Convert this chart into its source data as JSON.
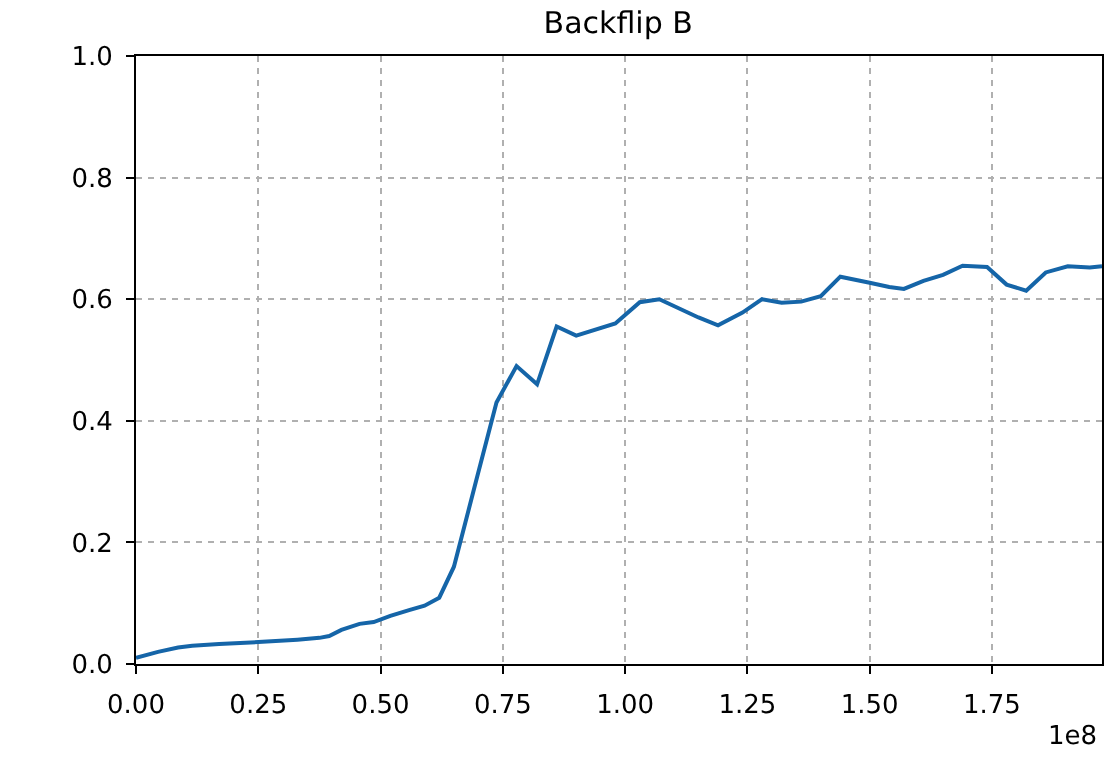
{
  "chart_data": {
    "type": "line",
    "title": "Backflip B",
    "annotations": [
      "1e8"
    ],
    "x": [
      0,
      0.045,
      0.086,
      0.115,
      0.17,
      0.25,
      0.33,
      0.375,
      0.395,
      0.42,
      0.457,
      0.486,
      0.52,
      0.56,
      0.59,
      0.62,
      0.65,
      0.695,
      0.737,
      0.778,
      0.82,
      0.86,
      0.9,
      0.98,
      1.03,
      1.07,
      1.15,
      1.19,
      1.24,
      1.28,
      1.32,
      1.36,
      1.4,
      1.44,
      1.5,
      1.54,
      1.57,
      1.61,
      1.65,
      1.69,
      1.74,
      1.78,
      1.82,
      1.86,
      1.905,
      1.95,
      1.975
    ],
    "series": [
      {
        "color": "#1565a8",
        "values": [
          0.01,
          0.02,
          0.027,
          0.03,
          0.033,
          0.036,
          0.04,
          0.043,
          0.046,
          0.056,
          0.066,
          0.069,
          0.079,
          0.089,
          0.096,
          0.109,
          0.16,
          0.3,
          0.43,
          0.49,
          0.46,
          0.555,
          0.54,
          0.56,
          0.595,
          0.6,
          0.57,
          0.557,
          0.578,
          0.6,
          0.594,
          0.596,
          0.605,
          0.637,
          0.627,
          0.62,
          0.617,
          0.63,
          0.64,
          0.655,
          0.653,
          0.624,
          0.614,
          0.644,
          0.654,
          0.652,
          0.654
        ]
      }
    ],
    "xlim": [
      0,
      1.975
    ],
    "xticks": [
      {
        "value": 0,
        "label": "0.00"
      },
      {
        "value": 0.25,
        "label": "0.25"
      },
      {
        "value": 0.5,
        "label": "0.50"
      },
      {
        "value": 0.75,
        "label": "0.75"
      },
      {
        "value": 1,
        "label": "1.00"
      },
      {
        "value": 1.25,
        "label": "1.25"
      },
      {
        "value": 1.5,
        "label": "1.50"
      },
      {
        "value": 1.75,
        "label": "1.75"
      }
    ],
    "ylim": [
      0,
      1
    ],
    "yticks": [
      {
        "value": 0,
        "label": "0.0"
      },
      {
        "value": 0.2,
        "label": "0.2"
      },
      {
        "value": 0.4,
        "label": "0.4"
      },
      {
        "value": 0.6,
        "label": "0.6"
      },
      {
        "value": 0.8,
        "label": "0.8"
      },
      {
        "value": 1,
        "label": "1.0"
      }
    ],
    "grid": true,
    "line_style": "solid",
    "marker": "none"
  }
}
